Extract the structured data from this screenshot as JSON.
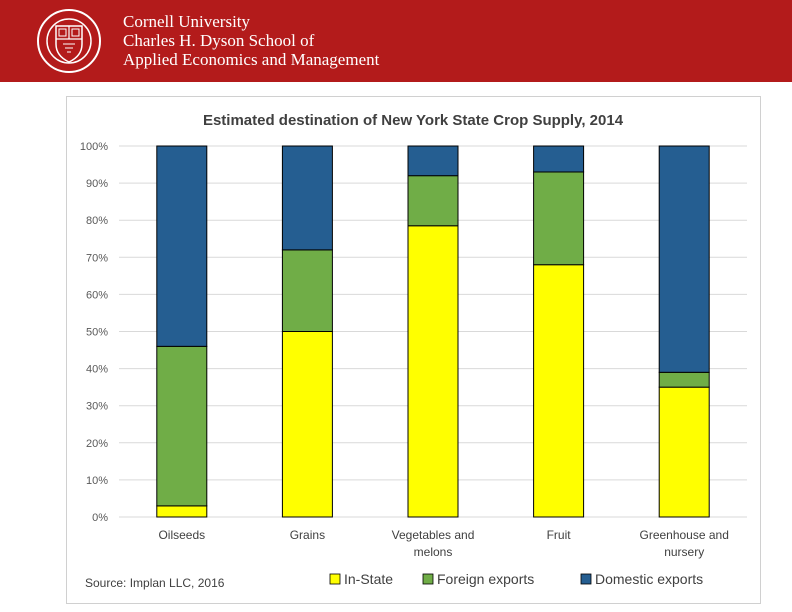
{
  "header": {
    "line1": "Cornell University",
    "line2": "Charles H. Dyson School of",
    "line3": "Applied Economics and Management",
    "seal_text": "CORNELL UNIVERSITY · FOUNDED A.D. 1865",
    "brand_color": "#b31b1b"
  },
  "chart_data": {
    "type": "bar",
    "stacked": true,
    "title": "Estimated destination of New York State Crop Supply, 2014",
    "xlabel": "",
    "ylabel": "",
    "ylim": [
      0,
      100
    ],
    "yticks": [
      "0%",
      "10%",
      "20%",
      "30%",
      "40%",
      "50%",
      "60%",
      "70%",
      "80%",
      "90%",
      "100%"
    ],
    "categories": [
      [
        "Oilseeds"
      ],
      [
        "Grains"
      ],
      [
        "Vegetables and",
        "melons"
      ],
      [
        "Fruit"
      ],
      [
        "Greenhouse and",
        "nursery"
      ]
    ],
    "series": [
      {
        "name": "In-State",
        "color": "#ffff00",
        "values": [
          3,
          50,
          78.5,
          68,
          35
        ]
      },
      {
        "name": "Foreign exports",
        "color": "#70ad47",
        "values": [
          43,
          22,
          13.5,
          25,
          4
        ]
      },
      {
        "name": "Domestic exports",
        "color": "#255e91",
        "values": [
          54,
          28,
          8,
          7,
          61
        ]
      }
    ],
    "legend_position": "bottom",
    "source": "Source: Implan LLC, 2016",
    "grid": true
  }
}
